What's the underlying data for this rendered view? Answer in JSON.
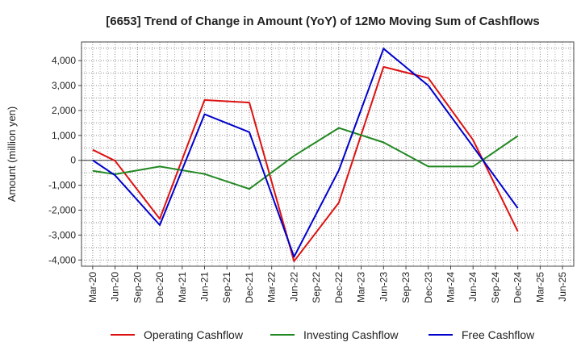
{
  "chart_data": {
    "type": "line",
    "title": "[6653]  Trend of Change in Amount (YoY) of 12Mo Moving Sum of Cashflows",
    "xlabel": "",
    "ylabel": "Amount (million yen)",
    "categories": [
      "Mar-20",
      "Jun-20",
      "Sep-20",
      "Dec-20",
      "Mar-21",
      "Jun-21",
      "Sep-21",
      "Dec-21",
      "Mar-22",
      "Jun-22",
      "Sep-22",
      "Dec-22",
      "Mar-23",
      "Jun-23",
      "Sep-23",
      "Dec-23",
      "Mar-24",
      "Jun-24",
      "Sep-24",
      "Dec-24",
      "Mar-25",
      "Jun-25"
    ],
    "ylim": [
      -4250,
      4750
    ],
    "yticks": [
      -4000,
      -3000,
      -2000,
      -1000,
      0,
      1000,
      2000,
      3000,
      4000
    ],
    "ytick_labels": [
      "-4,000",
      "-3,000",
      "-2,000",
      "-1,000",
      "0",
      "1,000",
      "2,000",
      "3,000",
      "4,000"
    ],
    "grid": true,
    "legend_position": "bottom",
    "series": [
      {
        "name": "Operating Cashflow",
        "color": "#dd1111",
        "values": [
          420,
          -20,
          null,
          -2350,
          null,
          2420,
          null,
          2320,
          null,
          -4050,
          null,
          -1700,
          null,
          3750,
          null,
          3300,
          null,
          820,
          null,
          -2850,
          null,
          null
        ]
      },
      {
        "name": "Investing Cashflow",
        "color": "#228822",
        "values": [
          -420,
          -560,
          null,
          -250,
          null,
          -550,
          null,
          -1150,
          null,
          180,
          null,
          1300,
          null,
          720,
          null,
          -250,
          null,
          -250,
          null,
          980,
          null,
          null
        ]
      },
      {
        "name": "Free Cashflow",
        "color": "#0000cc",
        "values": [
          0,
          -600,
          null,
          -2600,
          null,
          1850,
          null,
          1130,
          null,
          -3870,
          null,
          -400,
          null,
          4480,
          null,
          3000,
          null,
          550,
          null,
          -1920,
          null,
          null
        ]
      }
    ]
  }
}
